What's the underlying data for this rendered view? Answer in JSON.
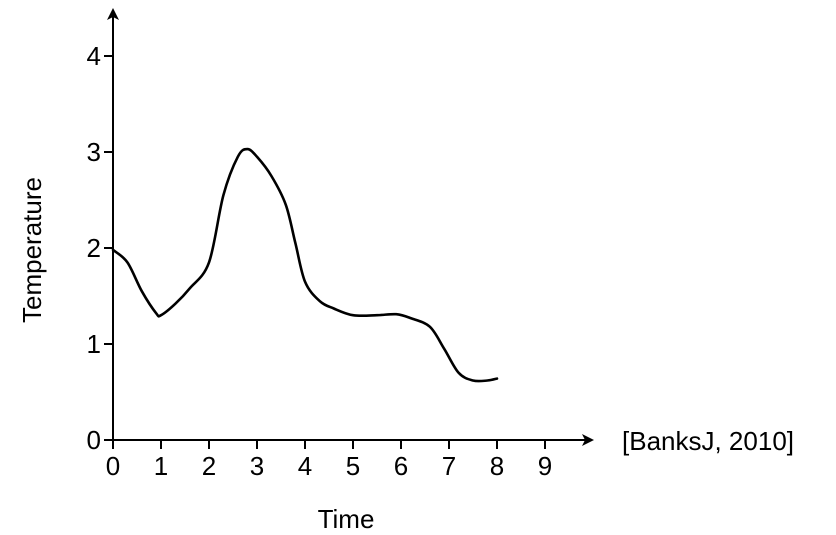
{
  "chart_data": {
    "type": "line",
    "xlabel": "Time",
    "ylabel": "Temperature",
    "xlim": [
      0,
      9
    ],
    "ylim": [
      0,
      4
    ],
    "x_ticks": [
      "0",
      "1",
      "2",
      "3",
      "4",
      "5",
      "6",
      "7",
      "8",
      "9"
    ],
    "y_ticks": [
      "0",
      "1",
      "2",
      "3",
      "4"
    ],
    "annotation": "[BanksJ, 2010]",
    "grid": false,
    "series": [
      {
        "color": "#000000",
        "x": [
          0,
          0.3,
          0.6,
          0.9,
          1.0,
          1.3,
          1.6,
          2.0,
          2.3,
          2.6,
          2.8,
          3.0,
          3.3,
          3.6,
          3.8,
          4.0,
          4.3,
          4.6,
          5.0,
          5.5,
          5.9,
          6.2,
          6.6,
          6.9,
          7.2,
          7.5,
          7.8,
          8.0
        ],
        "y": [
          1.98,
          1.85,
          1.55,
          1.32,
          1.3,
          1.42,
          1.58,
          1.85,
          2.55,
          2.95,
          3.03,
          2.95,
          2.75,
          2.45,
          2.05,
          1.65,
          1.45,
          1.37,
          1.3,
          1.3,
          1.31,
          1.27,
          1.18,
          0.95,
          0.7,
          0.62,
          0.62,
          0.64
        ]
      }
    ]
  }
}
